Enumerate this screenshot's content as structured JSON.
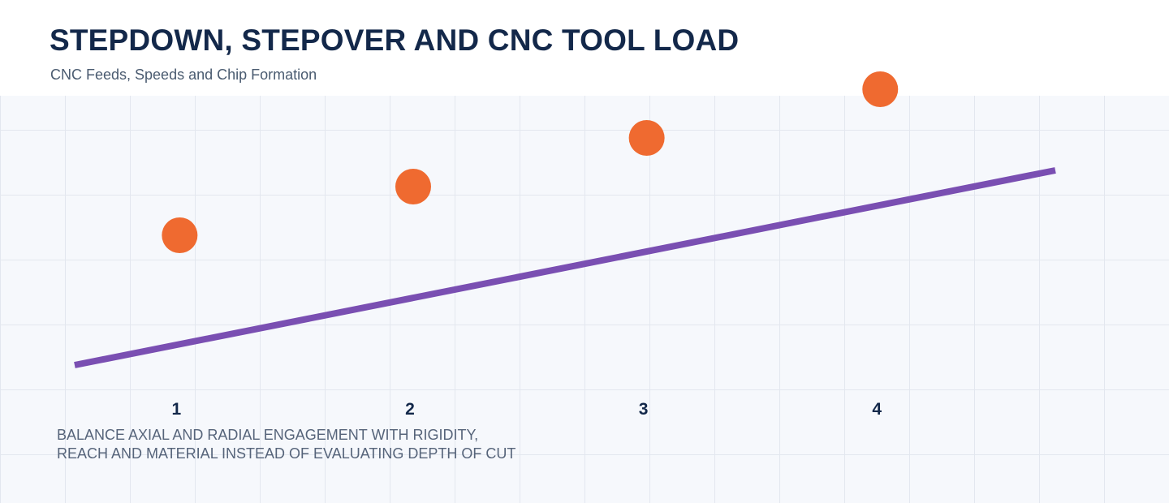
{
  "header": {
    "title": "STEPDOWN, STEPOVER AND CNC TOOL LOAD",
    "subtitle": "CNC Feeds, Speeds and Chip Formation"
  },
  "caption": "BALANCE AXIAL AND RADIAL ENGAGEMENT WITH RIGIDITY,\nREACH AND MATERIAL INSTEAD OF EVALUATING DEPTH OF CUT",
  "colors": {
    "points": "#ef6a30",
    "line": "#7a4fb2",
    "tick_labels": "#13284a",
    "grid": "#e3e7ef",
    "plot_background": "#f6f8fc"
  },
  "chart_data": {
    "type": "scatter",
    "title": "",
    "xlabel": "",
    "ylabel": "",
    "x_ticks": [
      "1",
      "2",
      "3",
      "4"
    ],
    "grid": true,
    "xlim": [
      0.3,
      4.75
    ],
    "ylim": [
      0,
      4.5
    ],
    "series": [
      {
        "kind": "points",
        "x": [
          1,
          2,
          3,
          4
        ],
        "y": [
          2.0,
          2.75,
          3.5,
          4.25
        ]
      },
      {
        "kind": "line",
        "x": [
          0.55,
          4.75
        ],
        "y": [
          0.0,
          3.0
        ]
      }
    ]
  }
}
